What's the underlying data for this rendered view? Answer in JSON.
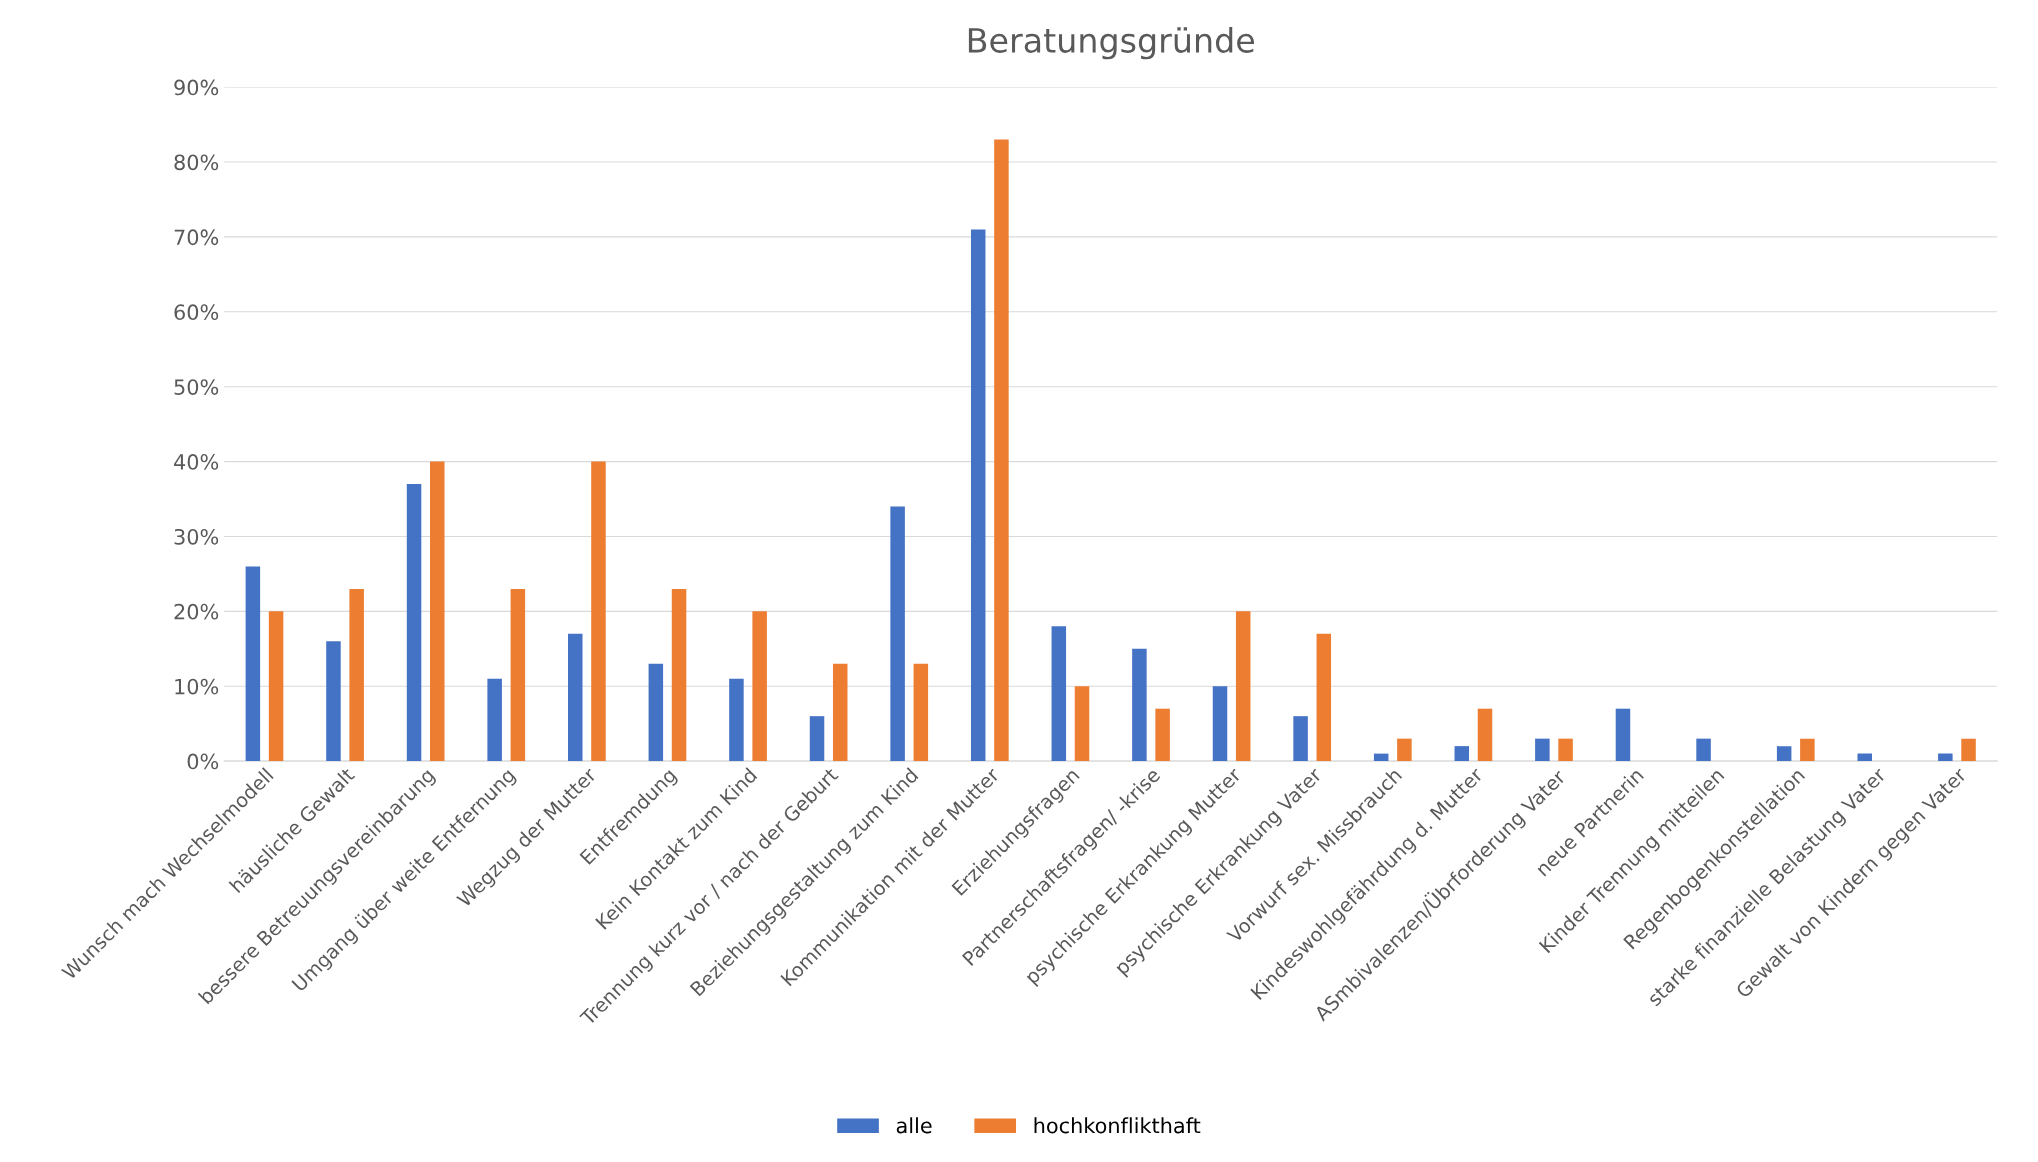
{
  "chart_data": {
    "type": "bar",
    "title": "Beratungsgründe",
    "categories": [
      "Wunsch mach Wechselmodell",
      "häusliche Gewalt",
      "bessere Betreuungsvereinbarung",
      "Umgang über weite Entfernung",
      "Wegzug der Mutter",
      "Entfremdung",
      "Kein Kontakt zum Kind",
      "Trennung kurz vor / nach der Geburt",
      "Beziehungsgestaltung zum Kind",
      "Kommunikation mit der Mutter",
      "Erziehungsfragen",
      "Partnerschaftsfragen/ -krise",
      "psychische Erkrankung Mutter",
      "psychische Erkrankung Vater",
      "Vorwurf sex. Missbrauch",
      "Kindeswohlgefährdung d. Mutter",
      "ASmbivalenzen/Übrforderung Vater",
      "neue Partnerin",
      "Kinder Trennung mitteilen",
      "Regenbogenkonstellation",
      "starke finanzielle Belastung Vater",
      "Gewalt von Kindern gegen Vater"
    ],
    "series": [
      {
        "name": "alle",
        "color": "#4472c4",
        "values": [
          26,
          16,
          37,
          11,
          17,
          13,
          11,
          6,
          34,
          71,
          18,
          15,
          10,
          6,
          1,
          2,
          3,
          7,
          3,
          2,
          1,
          1
        ]
      },
      {
        "name": "hochkonflikthaft",
        "color": "#ed7d31",
        "values": [
          20,
          23,
          40,
          23,
          40,
          23,
          20,
          13,
          13,
          83,
          10,
          7,
          20,
          17,
          3,
          7,
          3,
          0,
          0,
          3,
          0,
          3
        ]
      }
    ],
    "ylim": [
      0,
      90
    ],
    "yticks": [
      {
        "value": 0,
        "label": "0%"
      },
      {
        "value": 10,
        "label": "10%"
      },
      {
        "value": 20,
        "label": "20%"
      },
      {
        "value": 30,
        "label": "30%"
      },
      {
        "value": 40,
        "label": "40%"
      },
      {
        "value": 50,
        "label": "50%"
      },
      {
        "value": 60,
        "label": "60%"
      },
      {
        "value": 70,
        "label": "70%"
      },
      {
        "value": 80,
        "label": "80%"
      },
      {
        "value": 90,
        "label": "90%"
      }
    ],
    "grid": "y",
    "legend": "bottom"
  }
}
